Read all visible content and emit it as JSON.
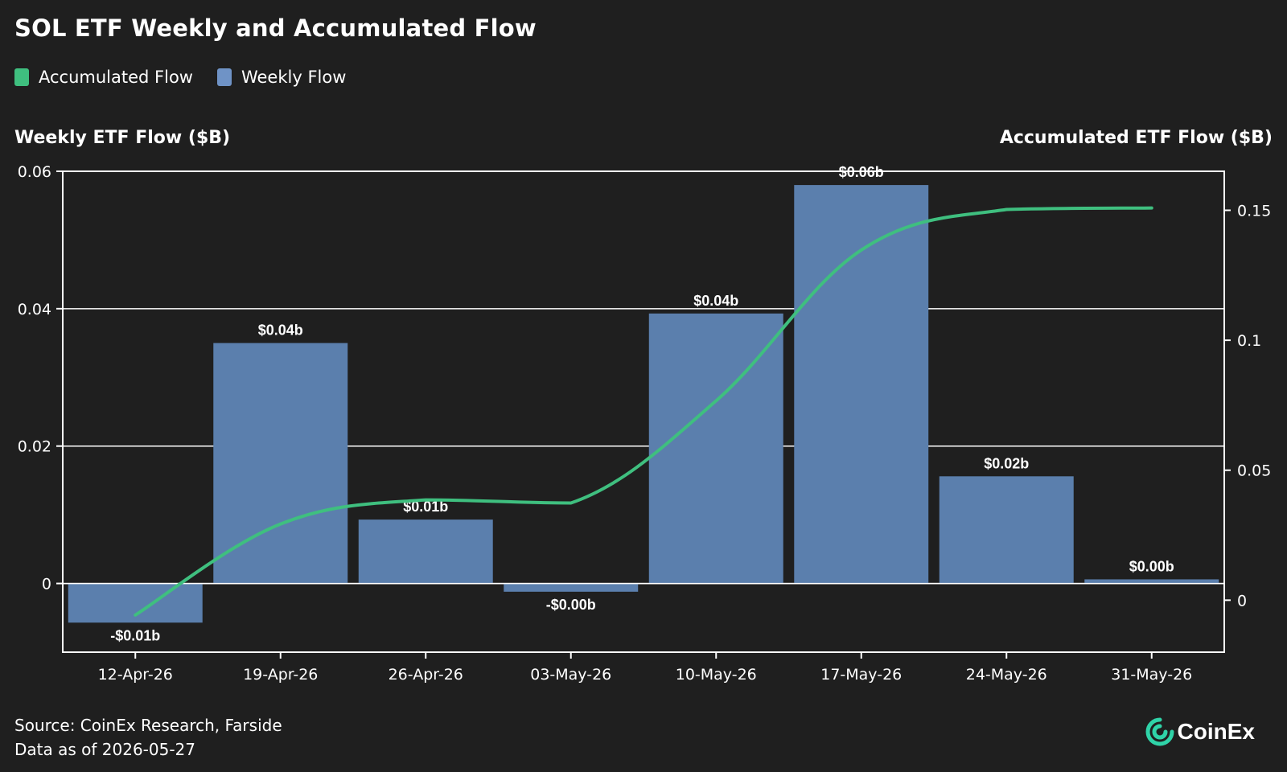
{
  "chart_data": {
    "type": "bar",
    "title": "SOL ETF Weekly and Accumulated Flow",
    "categories": [
      "12-Apr-26",
      "19-Apr-26",
      "26-Apr-26",
      "03-May-26",
      "10-May-26",
      "17-May-26",
      "24-May-26",
      "31-May-26"
    ],
    "series": [
      {
        "name": "Weekly Flow",
        "type": "bar",
        "axis": "left",
        "color": "#5b7fad",
        "values": [
          -0.0057,
          0.035,
          0.0093,
          -0.0012,
          0.0393,
          0.058,
          0.0156,
          0.0006
        ],
        "labels": [
          "-$0.01b",
          "$0.04b",
          "$0.01b",
          "-$0.00b",
          "$0.04b",
          "$0.06b",
          "$0.02b",
          "$0.00b"
        ]
      },
      {
        "name": "Accumulated Flow",
        "type": "line",
        "axis": "right",
        "color": "#3fbf7f",
        "values": [
          -0.0057,
          0.0293,
          0.0386,
          0.0374,
          0.0767,
          0.1347,
          0.1503,
          0.1509
        ]
      }
    ],
    "ylabel": "Weekly ETF Flow ($B)",
    "y2label": "Accumulated ETF Flow ($B)",
    "ylim": [
      -0.01,
      0.06
    ],
    "y2lim": [
      -0.02,
      0.165
    ],
    "yticks": [
      0,
      0.02,
      0.04,
      0.06
    ],
    "yticklabels": [
      "0",
      "0.02",
      "0.04",
      "0.06"
    ],
    "y2ticks": [
      0,
      0.05,
      0.1,
      0.15
    ],
    "y2ticklabels": [
      "0",
      "0.05",
      "0.1",
      "0.15"
    ],
    "grid": true,
    "legend": "top-left"
  },
  "legend": {
    "accumulated": "Accumulated Flow",
    "weekly": "Weekly Flow"
  },
  "colors": {
    "background": "#1f1f1f",
    "bar": "#5b7fad",
    "line": "#3fbf7f",
    "axis": "#ffffff"
  },
  "footer": {
    "source": "Source: CoinEx Research, Farside",
    "date": "Data as of 2026-05-27"
  },
  "brand": {
    "name": "CoinEx",
    "icon": "coinex-logo-icon"
  }
}
